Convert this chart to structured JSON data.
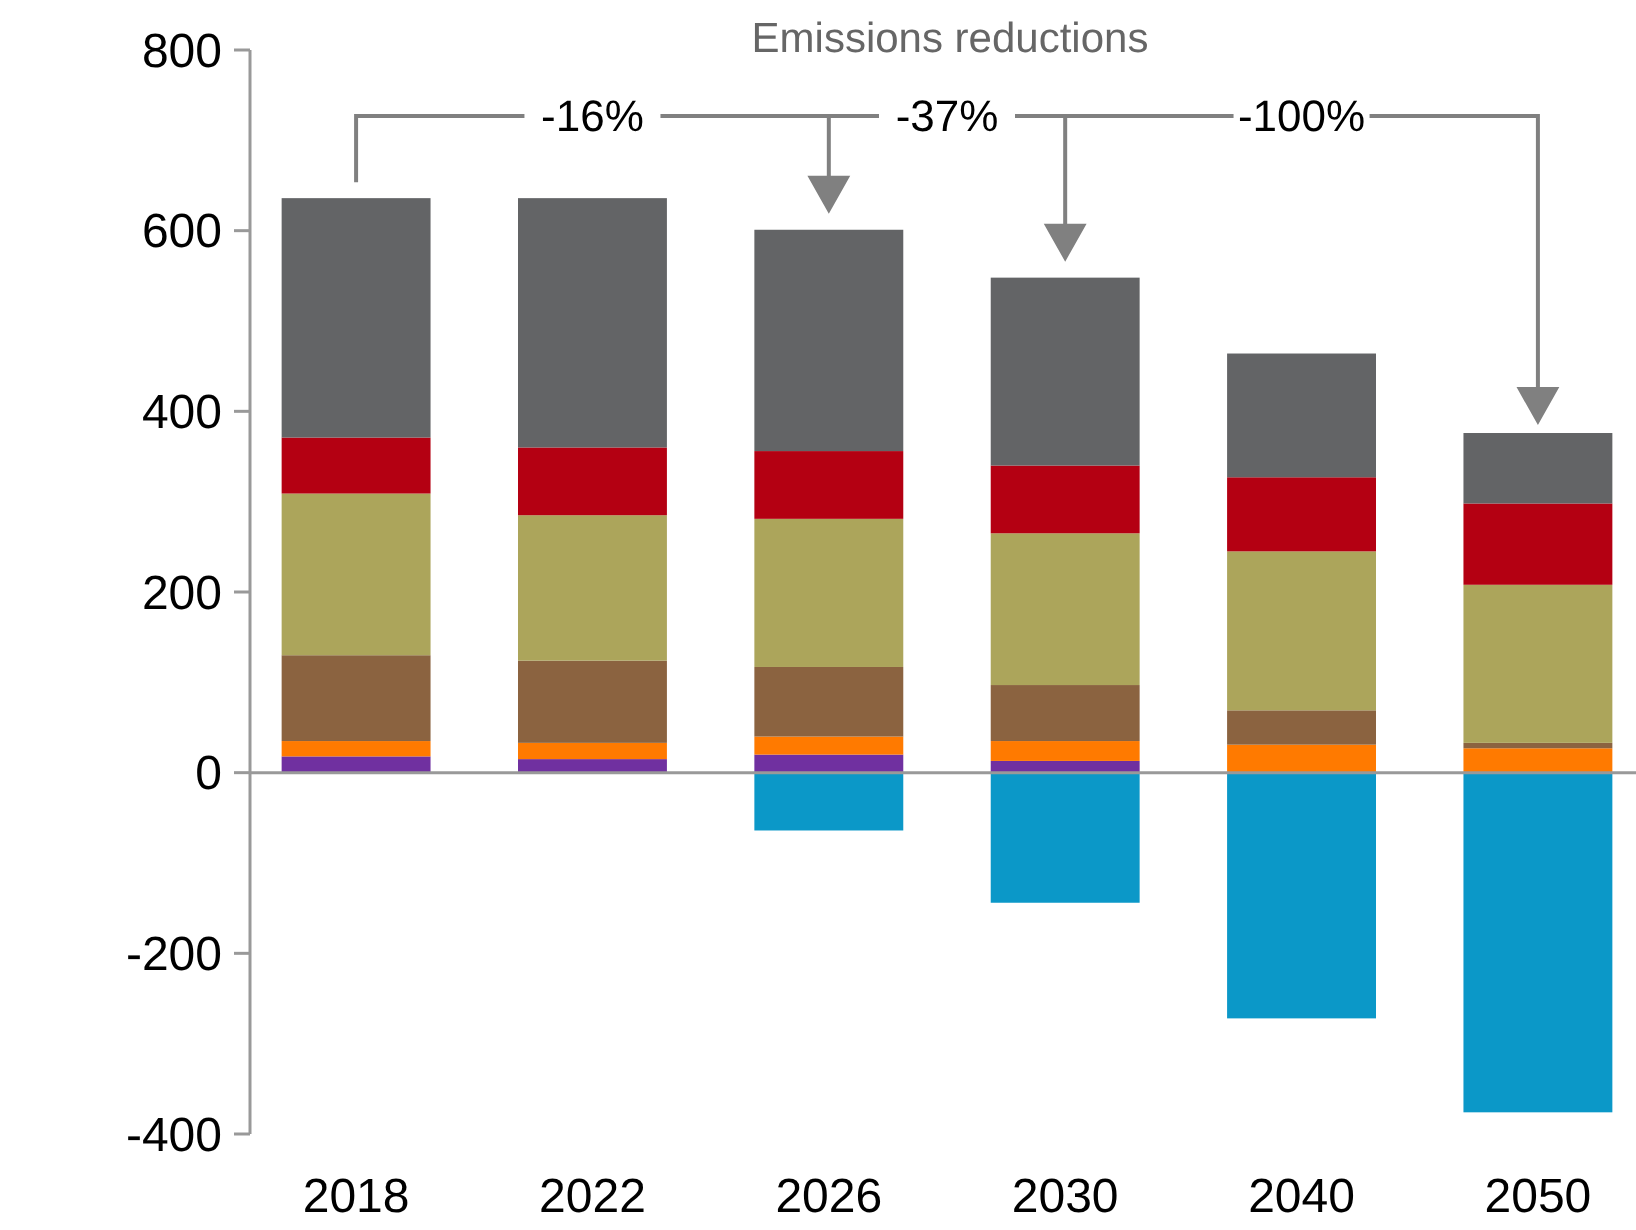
{
  "chart_data": {
    "type": "bar",
    "stacked": true,
    "title": "Emissions reductions",
    "categories": [
      "2018",
      "2022",
      "2026",
      "2030",
      "2040",
      "2050"
    ],
    "series": [
      {
        "color": "#0b98c8",
        "values": [
          null,
          null,
          -64,
          -144,
          -272,
          -376
        ]
      },
      {
        "color": "#7030a0",
        "values": [
          18,
          15,
          20,
          13,
          0,
          0
        ]
      },
      {
        "color": "#ff7a00",
        "values": [
          17,
          18,
          20,
          22,
          31,
          27
        ]
      },
      {
        "color": "#8b6340",
        "values": [
          95,
          91,
          77,
          62,
          38,
          6
        ]
      },
      {
        "color": "#aca55b",
        "values": [
          179,
          161,
          164,
          168,
          176,
          175
        ]
      },
      {
        "color": "#b40012",
        "values": [
          62,
          75,
          75,
          75,
          82,
          90
        ]
      },
      {
        "color": "#636466",
        "values": [
          265,
          276,
          245,
          208,
          137,
          78
        ]
      }
    ],
    "ylim": [
      -400,
      800
    ],
    "yticks": [
      -400,
      -200,
      0,
      200,
      400,
      600,
      800
    ],
    "annotations": [
      "-16%",
      "-37%",
      "-100%"
    ]
  }
}
